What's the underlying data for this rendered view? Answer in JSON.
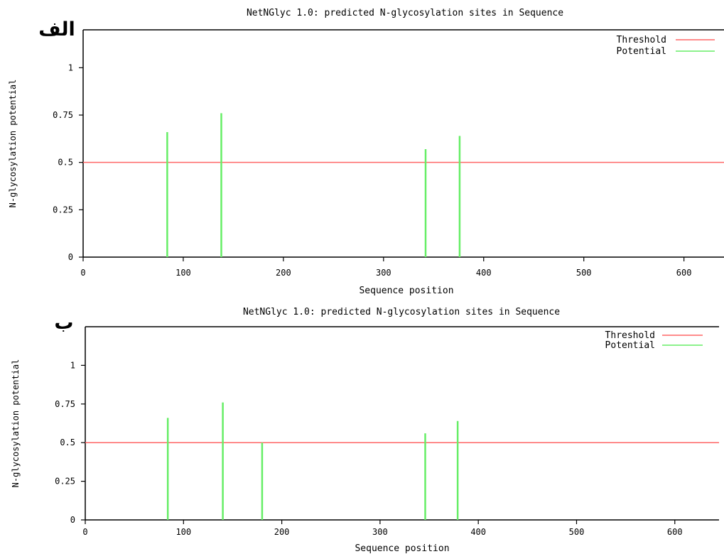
{
  "colors": {
    "threshold": "#ff6666",
    "potential": "#66ee66",
    "axis": "#000000",
    "background": "#ffffff"
  },
  "chart_data": [
    {
      "panel_label": "الف",
      "type": "bar",
      "title": "NetNGlyc 1.0: predicted N-glycosylation sites in Sequence",
      "xlabel": "Sequence position",
      "ylabel": "N-glycosylation potential",
      "xlim": [
        0,
        640
      ],
      "ylim": [
        0,
        1.2
      ],
      "xticks": [
        0,
        100,
        200,
        300,
        400,
        500,
        600
      ],
      "yticks": [
        0,
        0.25,
        0.5,
        0.75,
        1
      ],
      "ytick_labels": [
        "0",
        "0.25",
        "0.5",
        "0.75",
        "1"
      ],
      "legend": {
        "position": "top-right",
        "entries": [
          "Threshold",
          "Potential"
        ]
      },
      "threshold": {
        "name": "Threshold",
        "value": 0.5
      },
      "series": [
        {
          "name": "Potential",
          "x": [
            84,
            138,
            342,
            376
          ],
          "values": [
            0.66,
            0.76,
            0.57,
            0.64
          ]
        }
      ]
    },
    {
      "panel_label": "ب",
      "type": "bar",
      "title": "NetNGlyc 1.0: predicted N-glycosylation sites in Sequence",
      "xlabel": "Sequence position",
      "ylabel": "N-glycosylation potential",
      "xlim": [
        0,
        645
      ],
      "ylim": [
        0,
        1.25
      ],
      "xticks": [
        0,
        100,
        200,
        300,
        400,
        500,
        600
      ],
      "yticks": [
        0,
        0.25,
        0.5,
        0.75,
        1
      ],
      "ytick_labels": [
        "0",
        "0.25",
        "0.5",
        "0.75",
        "1"
      ],
      "legend": {
        "position": "top-right",
        "entries": [
          "Threshold",
          "Potential"
        ]
      },
      "threshold": {
        "name": "Threshold",
        "value": 0.5
      },
      "series": [
        {
          "name": "Potential",
          "x": [
            84,
            140,
            180,
            346,
            379
          ],
          "values": [
            0.66,
            0.76,
            0.5,
            0.56,
            0.64
          ]
        }
      ]
    }
  ]
}
